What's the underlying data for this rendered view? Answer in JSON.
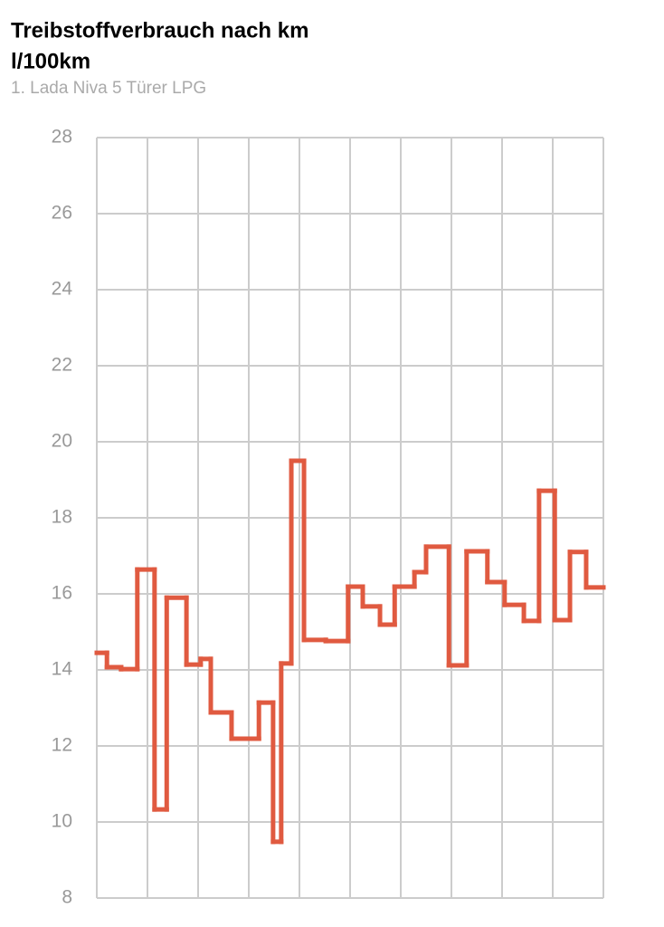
{
  "chart_data": {
    "type": "step",
    "title": "Treibstoffverbrauch nach km",
    "y_label": "l/100km",
    "subtitle": "1. Lada Niva 5 Türer LPG",
    "color": "#e05a40",
    "x": [
      0,
      0.2,
      0.48,
      0.8,
      1.14,
      1.38,
      1.77,
      2.05,
      2.25,
      2.66,
      3.2,
      3.48,
      3.64,
      3.84,
      4.09,
      4.52,
      4.96,
      5.25,
      5.59,
      5.88,
      6.27,
      6.5,
      6.95,
      7.3,
      7.71,
      8.05,
      8.43,
      8.73,
      9.04,
      9.34,
      9.66
    ],
    "values": [
      14.45,
      14.07,
      14.02,
      16.64,
      10.33,
      15.9,
      14.14,
      14.29,
      12.88,
      12.19,
      13.14,
      9.48,
      14.17,
      19.5,
      14.79,
      14.76,
      16.19,
      15.67,
      15.19,
      16.19,
      16.57,
      17.24,
      14.12,
      17.12,
      16.31,
      15.71,
      15.29,
      18.71,
      15.31,
      17.1,
      16.17
    ],
    "xlim": [
      0,
      10
    ],
    "ylim": [
      8,
      28
    ],
    "yticks": [
      8,
      10,
      12,
      14,
      16,
      18,
      20,
      22,
      24,
      26,
      28
    ],
    "grid": true
  }
}
